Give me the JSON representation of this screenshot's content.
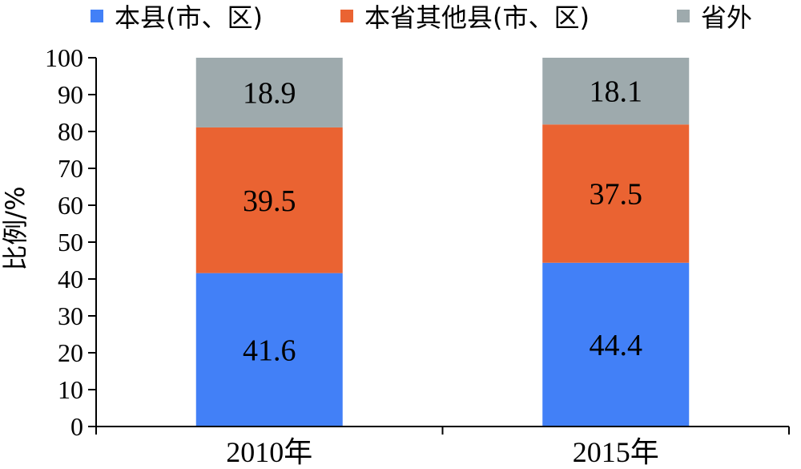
{
  "chart_data": {
    "type": "bar",
    "stacked": true,
    "categories": [
      "2010年",
      "2015年"
    ],
    "series": [
      {
        "name": "本县(市、区)",
        "values": [
          41.6,
          44.4
        ],
        "color": "#4280F7"
      },
      {
        "name": "本省其他县(市、区)",
        "values": [
          39.5,
          37.5
        ],
        "color": "#EA6332"
      },
      {
        "name": "省外",
        "values": [
          18.9,
          18.1
        ],
        "color": "#9EAAAD"
      }
    ],
    "ylabel": "比例/%",
    "ylim": [
      0,
      100
    ],
    "yticks": [
      0,
      10,
      20,
      30,
      40,
      50,
      60,
      70,
      80,
      90,
      100
    ],
    "legend_position": "top",
    "grid": false
  }
}
